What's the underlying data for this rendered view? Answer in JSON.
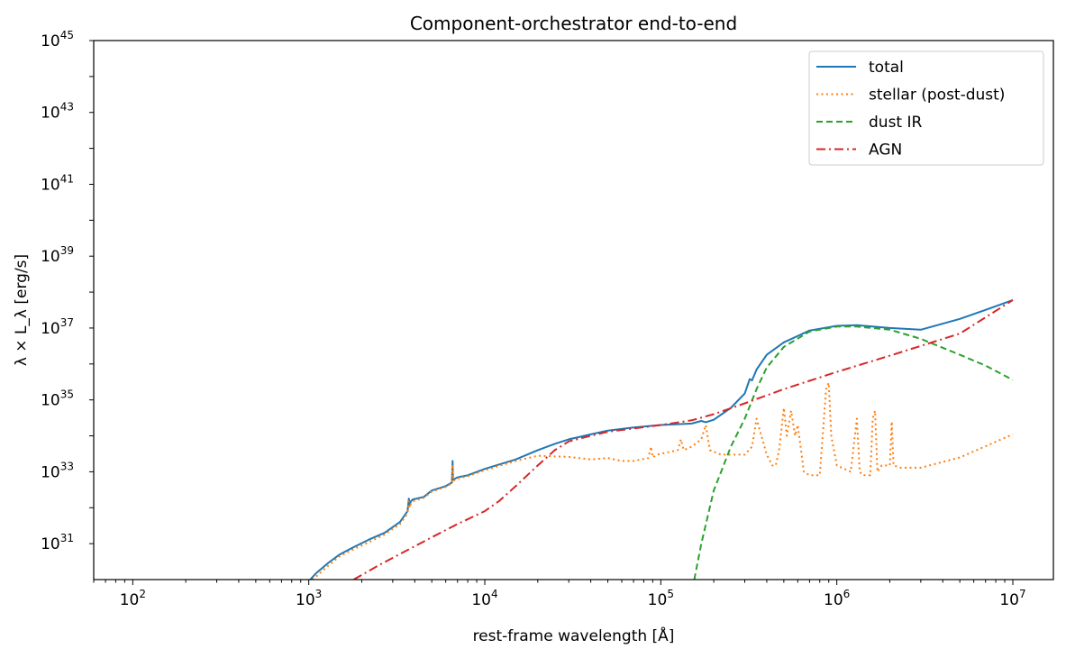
{
  "chart_data": {
    "type": "line",
    "title": "Component-orchestrator end-to-end",
    "xlabel": "rest-frame wavelength [Å]",
    "ylabel": "λ × L_λ  [erg/s]",
    "xscale": "log",
    "yscale": "log",
    "xlim": [
      60,
      17000000
    ],
    "ylim": [
      1e+30,
      1e+45
    ],
    "grid": false,
    "legend_position": "top-right",
    "x_ticks": [
      {
        "base": "10",
        "exp": "2",
        "value": 100
      },
      {
        "base": "10",
        "exp": "3",
        "value": 1000
      },
      {
        "base": "10",
        "exp": "4",
        "value": 10000
      },
      {
        "base": "10",
        "exp": "5",
        "value": 100000
      },
      {
        "base": "10",
        "exp": "6",
        "value": 1000000
      },
      {
        "base": "10",
        "exp": "7",
        "value": 10000000
      }
    ],
    "y_ticks": [
      {
        "base": "10",
        "exp": "31",
        "value": 1e+31
      },
      {
        "base": "10",
        "exp": "33",
        "value": 1e+33
      },
      {
        "base": "10",
        "exp": "35",
        "value": 1e+35
      },
      {
        "base": "10",
        "exp": "37",
        "value": 1e+37
      },
      {
        "base": "10",
        "exp": "39",
        "value": 1e+39
      },
      {
        "base": "10",
        "exp": "41",
        "value": 1e+41
      },
      {
        "base": "10",
        "exp": "43",
        "value": 1e+43
      },
      {
        "base": "10",
        "exp": "45",
        "value": 1e+45
      }
    ],
    "series": [
      {
        "name": "total",
        "color": "#1f77b4",
        "dash": "solid",
        "x": [
          1000,
          1100,
          1300,
          1500,
          1800,
          2200,
          2700,
          3300,
          3640,
          3700,
          3750,
          3800,
          3900,
          4500,
          5000,
          6000,
          6500,
          6563,
          6600,
          7000,
          8000,
          10000,
          15000,
          20000,
          25000,
          30000,
          40000,
          50000,
          70000,
          100000,
          150000,
          170000,
          180000,
          200000,
          250000,
          300000,
          320000,
          330000,
          350000,
          400000,
          500000,
          700000,
          1000000,
          1300000,
          2000000,
          3000000,
          5000000,
          7000000,
          10000000
        ],
        "y": [
          9e+29,
          1.5e+30,
          3e+30,
          5e+30,
          8e+30,
          1.3e+31,
          2e+31,
          4e+31,
          8e+31,
          1.8e+32,
          1.2e+32,
          1.5e+32,
          1.7e+32,
          2e+32,
          3e+32,
          4e+32,
          5e+32,
          2e+33,
          6e+32,
          7e+32,
          8e+32,
          1.2e+33,
          2.2e+33,
          4e+33,
          6e+33,
          8e+33,
          1.1e+34,
          1.4e+34,
          1.7e+34,
          2e+34,
          2.2e+34,
          2.6e+34,
          2.4e+34,
          2.8e+34,
          6e+34,
          1.5e+35,
          3.8e+35,
          3.5e+35,
          7e+35,
          1.8e+36,
          4e+36,
          8.5e+36,
          1.15e+37,
          1.2e+37,
          1e+37,
          9e+36,
          1.8e+37,
          3.2e+37,
          6e+37
        ]
      },
      {
        "name": "stellar (post-dust)",
        "color": "#ff7f0e",
        "dash": "dotted",
        "x": [
          1000,
          1100,
          1300,
          1500,
          1800,
          2200,
          2700,
          3300,
          3640,
          3700,
          3750,
          3800,
          3900,
          4500,
          5000,
          6000,
          6500,
          6563,
          6600,
          7000,
          8000,
          10000,
          15000,
          20000,
          30000,
          40000,
          50000,
          60000,
          70000,
          85000,
          88000,
          90000,
          95000,
          110000,
          125000,
          130000,
          135000,
          150000,
          170000,
          180000,
          190000,
          220000,
          300000,
          330000,
          350000,
          400000,
          430000,
          450000,
          470000,
          500000,
          520000,
          550000,
          580000,
          600000,
          650000,
          700000,
          800000,
          870000,
          900000,
          930000,
          1000000,
          1200000,
          1300000,
          1350000,
          1400000,
          1550000,
          1600000,
          1650000,
          1700000,
          1800000,
          2000000,
          2050000,
          2100000,
          2300000,
          3000000,
          5000000,
          10000000
        ],
        "y": [
          8e+29,
          1.2e+30,
          2.5e+30,
          4.5e+30,
          7e+30,
          1.1e+31,
          1.8e+31,
          3.5e+31,
          7e+31,
          1.5e+32,
          1e+32,
          1.3e+32,
          1.5e+32,
          1.9e+32,
          2.8e+32,
          3.8e+32,
          4.8e+32,
          1.6e+33,
          5.5e+32,
          6.5e+32,
          7.5e+32,
          1.1e+33,
          2e+33,
          2.8e+33,
          2.6e+33,
          2.2e+33,
          2.4e+33,
          2e+33,
          2e+33,
          2.4e+33,
          5e+33,
          2.5e+33,
          3e+33,
          3.5e+33,
          4e+33,
          8e+33,
          4e+33,
          5e+33,
          8e+33,
          2e+34,
          4e+33,
          3e+33,
          3e+33,
          5e+33,
          3e+34,
          3e+33,
          1.5e+33,
          1.5e+33,
          4e+33,
          6e+34,
          1e+34,
          5e+34,
          1e+34,
          2e+34,
          1e+33,
          8e+32,
          8e+32,
          2e+35,
          3e+35,
          1e+34,
          1.5e+33,
          1e+33,
          3e+34,
          1e+33,
          8e+32,
          8e+32,
          3e+34,
          5e+34,
          1e+33,
          1.5e+33,
          1.5e+33,
          2.5e+34,
          1.5e+33,
          1.3e+33,
          1.3e+33,
          2.5e+33,
          1.1e+34
        ]
      },
      {
        "name": "dust IR",
        "color": "#2ca02c",
        "dash": "dashed",
        "x": [
          155000,
          170000,
          200000,
          250000,
          300000,
          350000,
          400000,
          500000,
          700000,
          1000000,
          1300000,
          2000000,
          3000000,
          5000000,
          7000000,
          10000000
        ],
        "y": [
          1e+30,
          1e+31,
          3e+32,
          5e+33,
          3e+34,
          2e+35,
          8e+35,
          3e+36,
          8e+36,
          1.1e+37,
          1.1e+37,
          9e+36,
          5e+36,
          1.8e+36,
          9e+35,
          3.6e+35
        ]
      },
      {
        "name": "AGN",
        "color": "#d62728",
        "dash": "dashdot",
        "x": [
          1800,
          2500,
          3500,
          5000,
          7000,
          10000,
          12000,
          15000,
          20000,
          25000,
          30000,
          40000,
          50000,
          70000,
          100000,
          150000,
          200000,
          300000,
          500000,
          1000000,
          2000000,
          5000000,
          10000000
        ],
        "y": [
          1e+30,
          2.5e+30,
          6e+30,
          1.5e+31,
          3.5e+31,
          8e+31,
          1.5e+32,
          4e+32,
          1.5e+33,
          4e+33,
          7e+33,
          1e+34,
          1.3e+34,
          1.6e+34,
          2e+34,
          2.7e+34,
          4e+34,
          8e+34,
          2e+35,
          6e+35,
          1.7e+36,
          7e+36,
          6e+37
        ]
      }
    ]
  }
}
